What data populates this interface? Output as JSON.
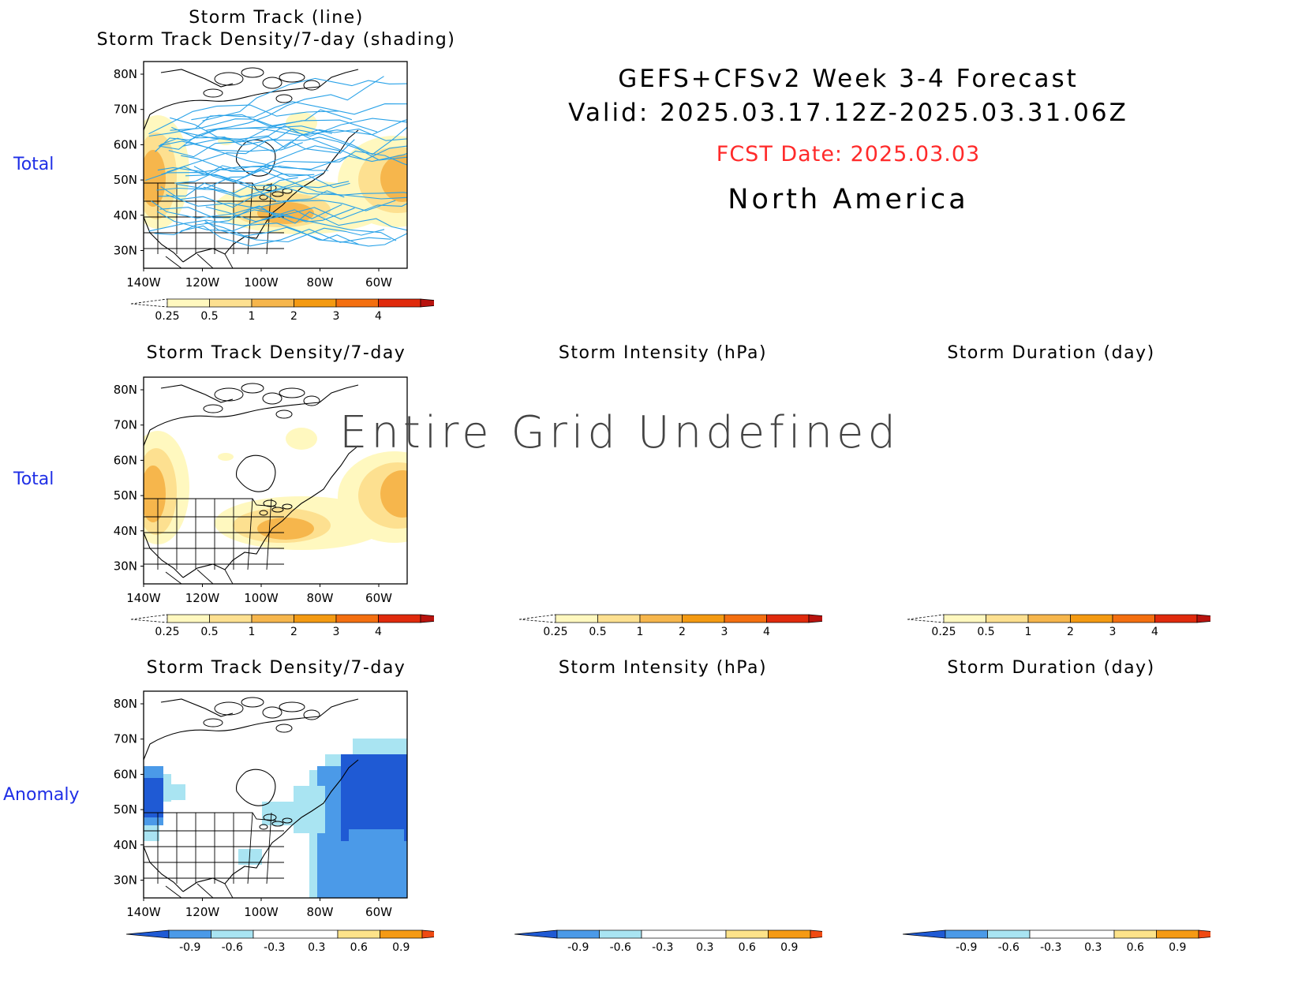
{
  "header": {
    "title": "GEFS+CFSv2 Week 3-4 Forecast",
    "valid": "Valid: 2025.03.17.12Z-2025.03.31.06Z",
    "fcst_date": "FCST Date: 2025.03.03",
    "region": "North America"
  },
  "row_labels": [
    "Total",
    "Total",
    "Anomaly"
  ],
  "panel_titles": {
    "top_line1": "Storm Track (line)",
    "top_line2": "Storm Track Density/7-day (shading)",
    "density": "Storm Track Density/7-day",
    "intensity": "Storm Intensity (hPa)",
    "duration": "Storm Duration (day)"
  },
  "undefined_message": "Entire Grid Undefined",
  "map_axes": {
    "lat_labels": [
      "80N",
      "70N",
      "60N",
      "50N",
      "40N",
      "30N"
    ],
    "lon_labels": [
      "140W",
      "120W",
      "100W",
      "80W",
      "60W"
    ]
  },
  "colorbars": {
    "total": {
      "labels": [
        "0.25",
        "0.5",
        "1",
        "2",
        "3",
        "4"
      ],
      "colors": [
        "#fff8bf",
        "#fde090",
        "#f6b64c",
        "#f49a12",
        "#f46f10",
        "#e02a0c",
        "#b8130e"
      ]
    },
    "anomaly": {
      "labels": [
        "-0.9",
        "-0.6",
        "-0.3",
        "0.3",
        "0.6",
        "0.9"
      ],
      "colors": [
        "#1f5ad4",
        "#4b9ae8",
        "#a9e4f2",
        "#ffffff",
        "#fde38a",
        "#f59a14",
        "#ef4a12"
      ]
    }
  },
  "colors": {
    "row_label": "#1f2fe6",
    "fcst_date": "#ff2a2a",
    "track_line": "#29a2e8"
  }
}
